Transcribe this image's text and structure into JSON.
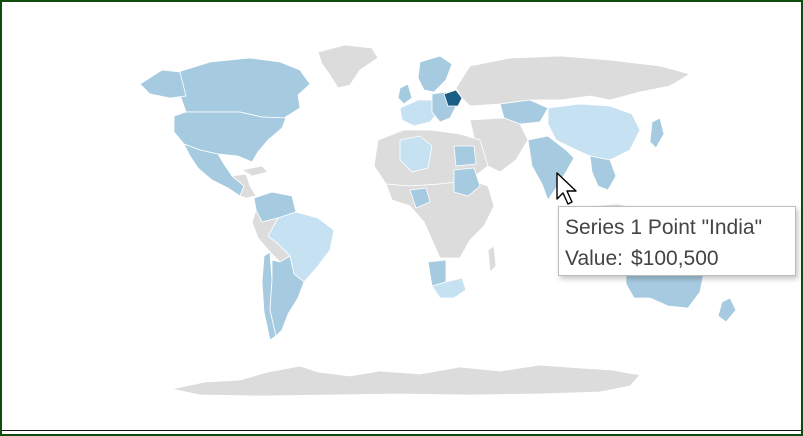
{
  "map": {
    "type": "choropleth-world",
    "series_name": "Series 1",
    "colors": {
      "no_data": "#dcdcdc",
      "low": "#c6e2f2",
      "mid": "#a6cbe0",
      "high": "#1a5f86",
      "border": "#ffffff"
    },
    "highlighted_region": "Belarus"
  },
  "tooltip": {
    "title": "Series 1 Point \"India\"",
    "value_label": "Value:",
    "value": "$100,500"
  },
  "cursor_icon": "arrow-pointer-icon"
}
